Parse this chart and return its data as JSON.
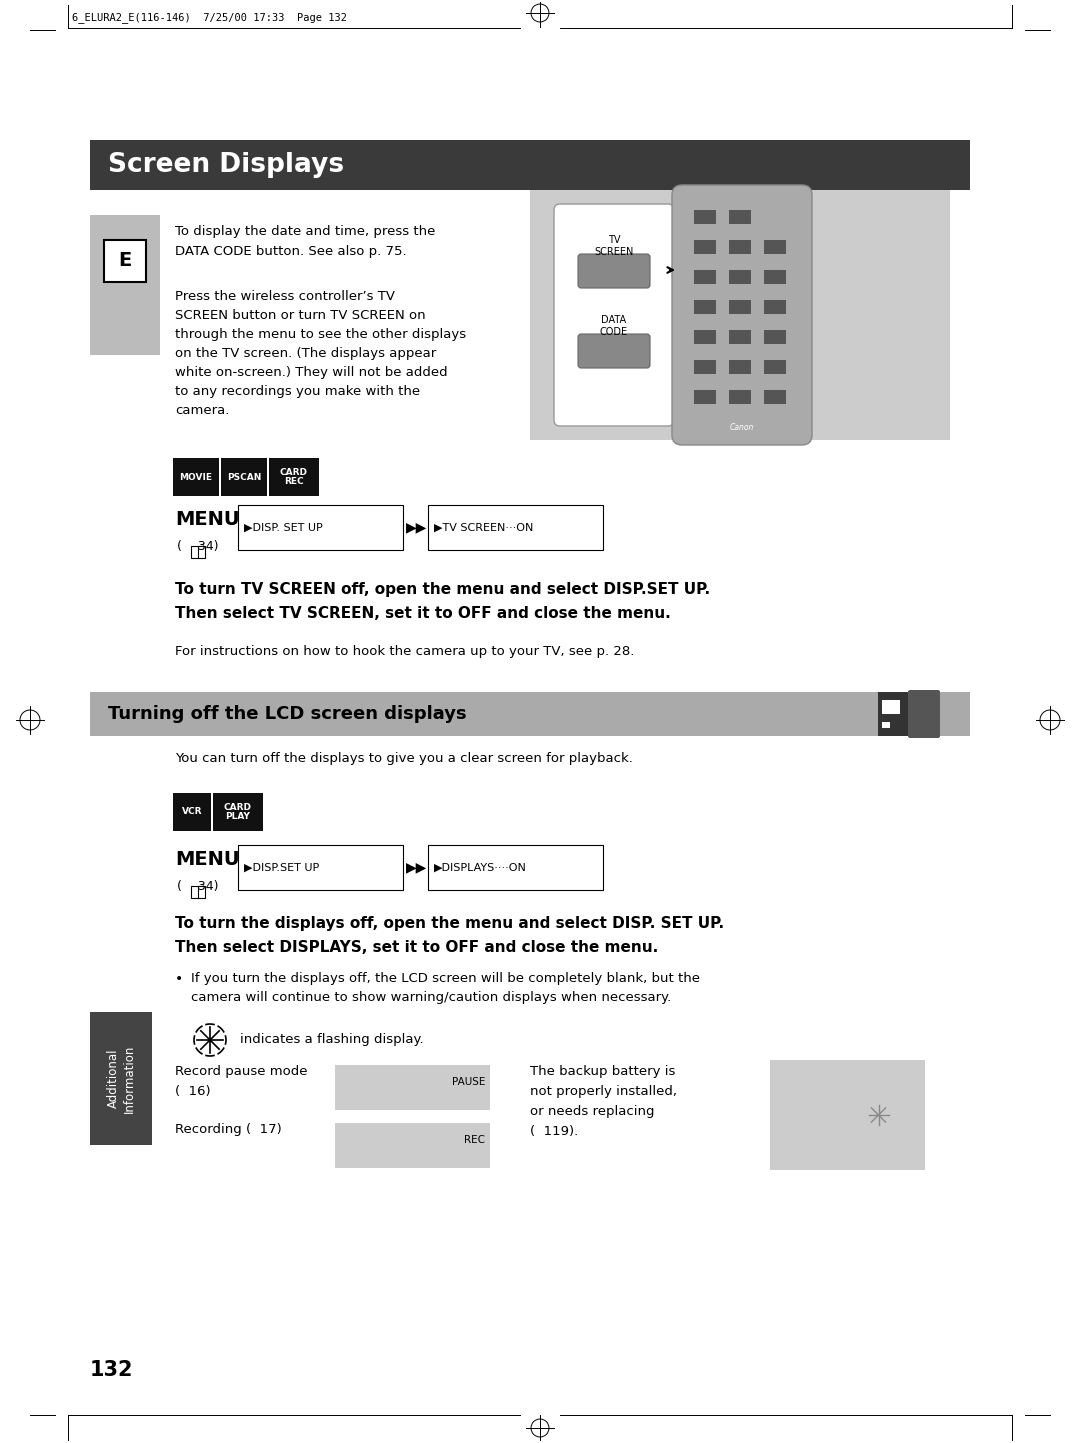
{
  "page_header": "6_ELURA2_E(116-146)  7/25/00 17:33  Page 132",
  "section_title": "Screen Displays",
  "section_title_bg": "#3a3a3a",
  "section_title_color": "#ffffff",
  "section_subtitle": "Turning off the LCD screen displays",
  "section_subtitle_bg": "#aaaaaa",
  "section_subtitle_color": "#000000",
  "sidebar_bg": "#bbbbbb",
  "sidebar_dark_bg": "#444444",
  "body_bg": "#ffffff",
  "text_color": "#000000",
  "para1_line1": "To display the date and time, press the",
  "para1_line2": "DATA CODE button. See also p. 75.",
  "para2": "Press the wireless controller’s TV\nSCREEN button or turn TV SCREEN on\nthrough the menu to see the other displays\non the TV screen. (The displays appear\nwhite on-screen.) They will not be added\nto any recordings you make with the\ncamera.",
  "bold_text1_line1": "To turn TV SCREEN off, open the menu and select DISP.SET UP.",
  "bold_text1_line2": "Then select TV SCREEN, set it to OFF and close the menu.",
  "para3": "For instructions on how to hook the camera up to your TV, see p. 28.",
  "para4": "You can turn off the displays to give you a clear screen for playback.",
  "bold_text2_line1": "To turn the displays off, open the menu and select DISP. SET UP.",
  "bold_text2_line2": "Then select DISPLAYS, set it to OFF and close the menu.",
  "bullet1_line1": "If you turn the displays off, the LCD screen will be completely blank, but the",
  "bullet1_line2": "camera will continue to show warning/caution displays when necessary.",
  "indicates_text": "indicates a flashing display.",
  "record_pause_line1": "Record pause mode",
  "record_pause_line2": "(  16)",
  "recording_text": "Recording (  17)",
  "backup_line1": "The backup battery is",
  "backup_line2": "not properly installed,",
  "backup_line3": "or needs replacing",
  "backup_line4": "(  119).",
  "page_number": "132",
  "additional_info_line1": "Additional",
  "additional_info_line2": "Information",
  "menu_ref": "(    34)",
  "book_icon": "  "
}
